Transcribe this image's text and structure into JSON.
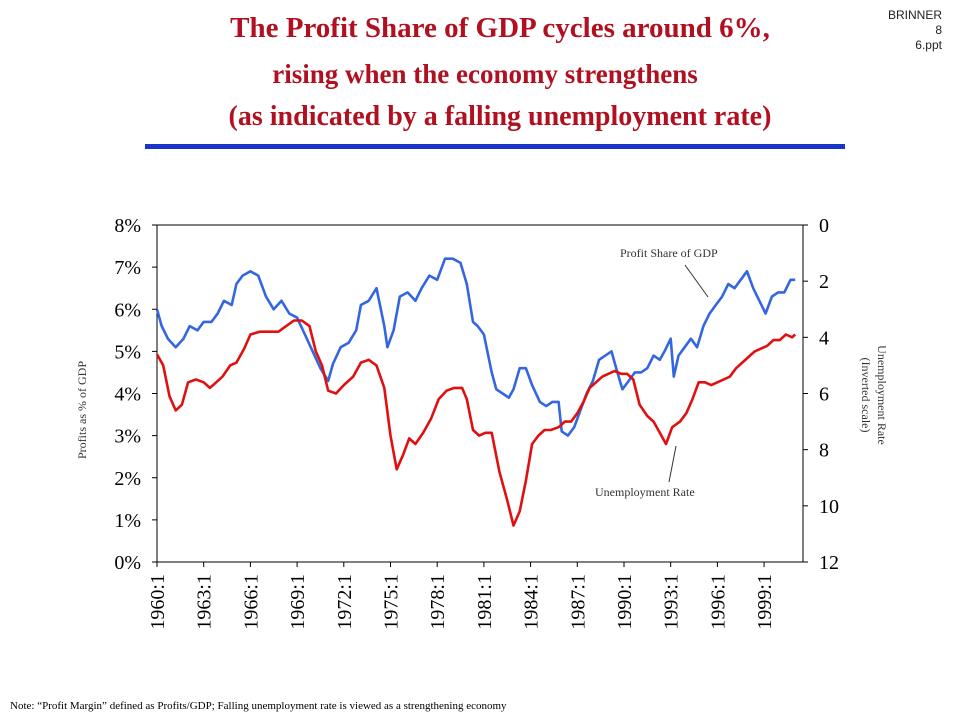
{
  "header": {
    "title_line1": "The Profit Share of GDP cycles around 6%,",
    "title_line2": "rising when the economy strengthens",
    "title_line3": "(as indicated by a falling unemployment rate)",
    "badge_line1": "BRINNER",
    "badge_line2": "8",
    "badge_line3": "6.ppt"
  },
  "note": "Note: “Profit Margin” defined as Profits/GDP; Falling unemployment rate is viewed as a strengthening economy",
  "colors": {
    "profit": "#3366e0",
    "unemployment": "#e01010",
    "title": "#b01020",
    "rule": "#1a33c8"
  },
  "chart_data": {
    "type": "line",
    "ylabel_left": "Profits as % of GDP",
    "ylabel_right_line1": "Unemployment Rate",
    "ylabel_right_line2": "(Inverted scale)",
    "y_left_ticks": [
      "0%",
      "1%",
      "2%",
      "3%",
      "4%",
      "5%",
      "6%",
      "7%",
      "8%"
    ],
    "y_right_ticks": [
      "0",
      "2",
      "4",
      "6",
      "8",
      "10",
      "12"
    ],
    "y_left_range": [
      0,
      8
    ],
    "y_right_range": [
      12,
      0
    ],
    "x_range": [
      1960.0,
      2001.5
    ],
    "x_ticks": [
      "1960:1",
      "1963:1",
      "1966:1",
      "1969:1",
      "1972:1",
      "1975:1",
      "1978:1",
      "1981:1",
      "1984:1",
      "1987:1",
      "1990:1",
      "1993:1",
      "1996:1",
      "1999:1"
    ],
    "annotations": {
      "profit": "Profit Share of GDP",
      "unemployment": "Unemployment Rate"
    },
    "series": [
      {
        "name": "Profit Share of GDP",
        "axis": "left",
        "points": [
          [
            1960.0,
            6.0
          ],
          [
            1960.3,
            5.6
          ],
          [
            1960.7,
            5.3
          ],
          [
            1961.2,
            5.1
          ],
          [
            1961.7,
            5.3
          ],
          [
            1962.1,
            5.6
          ],
          [
            1962.6,
            5.5
          ],
          [
            1963.0,
            5.7
          ],
          [
            1963.5,
            5.7
          ],
          [
            1963.9,
            5.9
          ],
          [
            1964.3,
            6.2
          ],
          [
            1964.8,
            6.1
          ],
          [
            1965.1,
            6.6
          ],
          [
            1965.5,
            6.8
          ],
          [
            1966.0,
            6.9
          ],
          [
            1966.5,
            6.8
          ],
          [
            1967.0,
            6.3
          ],
          [
            1967.5,
            6.0
          ],
          [
            1968.0,
            6.2
          ],
          [
            1968.5,
            5.9
          ],
          [
            1969.0,
            5.8
          ],
          [
            1969.5,
            5.4
          ],
          [
            1970.0,
            5.0
          ],
          [
            1970.5,
            4.6
          ],
          [
            1971.0,
            4.3
          ],
          [
            1971.3,
            4.7
          ],
          [
            1971.8,
            5.1
          ],
          [
            1972.3,
            5.2
          ],
          [
            1972.8,
            5.5
          ],
          [
            1973.1,
            6.1
          ],
          [
            1973.6,
            6.2
          ],
          [
            1974.1,
            6.5
          ],
          [
            1974.6,
            5.6
          ],
          [
            1974.8,
            5.1
          ],
          [
            1975.2,
            5.5
          ],
          [
            1975.6,
            6.3
          ],
          [
            1976.1,
            6.4
          ],
          [
            1976.6,
            6.2
          ],
          [
            1977.0,
            6.5
          ],
          [
            1977.5,
            6.8
          ],
          [
            1978.0,
            6.7
          ],
          [
            1978.5,
            7.2
          ],
          [
            1979.0,
            7.2
          ],
          [
            1979.5,
            7.1
          ],
          [
            1979.9,
            6.6
          ],
          [
            1980.3,
            5.7
          ],
          [
            1980.6,
            5.6
          ],
          [
            1981.0,
            5.4
          ],
          [
            1981.5,
            4.5
          ],
          [
            1981.8,
            4.1
          ],
          [
            1982.2,
            4.0
          ],
          [
            1982.6,
            3.9
          ],
          [
            1982.9,
            4.1
          ],
          [
            1983.3,
            4.6
          ],
          [
            1983.7,
            4.6
          ],
          [
            1984.1,
            4.2
          ],
          [
            1984.6,
            3.8
          ],
          [
            1985.0,
            3.7
          ],
          [
            1985.4,
            3.8
          ],
          [
            1985.8,
            3.8
          ],
          [
            1986.0,
            3.1
          ],
          [
            1986.4,
            3.0
          ],
          [
            1986.8,
            3.2
          ],
          [
            1987.2,
            3.6
          ],
          [
            1987.6,
            4.0
          ],
          [
            1988.0,
            4.3
          ],
          [
            1988.4,
            4.8
          ],
          [
            1988.8,
            4.9
          ],
          [
            1989.2,
            5.0
          ],
          [
            1989.5,
            4.6
          ],
          [
            1989.9,
            4.1
          ],
          [
            1990.3,
            4.3
          ],
          [
            1990.7,
            4.5
          ],
          [
            1991.1,
            4.5
          ],
          [
            1991.5,
            4.6
          ],
          [
            1991.9,
            4.9
          ],
          [
            1992.3,
            4.8
          ],
          [
            1992.6,
            5.0
          ],
          [
            1993.0,
            5.3
          ],
          [
            1993.2,
            4.4
          ],
          [
            1993.5,
            4.9
          ],
          [
            1993.9,
            5.1
          ],
          [
            1994.3,
            5.3
          ],
          [
            1994.7,
            5.1
          ],
          [
            1995.1,
            5.6
          ],
          [
            1995.5,
            5.9
          ],
          [
            1995.9,
            6.1
          ],
          [
            1996.3,
            6.3
          ],
          [
            1996.7,
            6.6
          ],
          [
            1997.1,
            6.5
          ],
          [
            1997.5,
            6.7
          ],
          [
            1997.9,
            6.9
          ],
          [
            1998.3,
            6.5
          ],
          [
            1998.7,
            6.2
          ],
          [
            1999.1,
            5.9
          ],
          [
            1999.5,
            6.3
          ],
          [
            1999.9,
            6.4
          ],
          [
            2000.3,
            6.4
          ],
          [
            2000.7,
            6.7
          ],
          [
            2001.0,
            6.7
          ]
        ]
      },
      {
        "name": "Unemployment Rate",
        "axis": "right",
        "points": [
          [
            1960.0,
            4.6
          ],
          [
            1960.4,
            5.0
          ],
          [
            1960.8,
            6.1
          ],
          [
            1961.2,
            6.6
          ],
          [
            1961.6,
            6.4
          ],
          [
            1962.0,
            5.6
          ],
          [
            1962.5,
            5.5
          ],
          [
            1963.0,
            5.6
          ],
          [
            1963.4,
            5.8
          ],
          [
            1963.8,
            5.6
          ],
          [
            1964.2,
            5.4
          ],
          [
            1964.7,
            5.0
          ],
          [
            1965.1,
            4.9
          ],
          [
            1965.6,
            4.4
          ],
          [
            1966.0,
            3.9
          ],
          [
            1966.6,
            3.8
          ],
          [
            1967.2,
            3.8
          ],
          [
            1967.8,
            3.8
          ],
          [
            1968.3,
            3.6
          ],
          [
            1968.8,
            3.4
          ],
          [
            1969.3,
            3.4
          ],
          [
            1969.8,
            3.6
          ],
          [
            1970.2,
            4.5
          ],
          [
            1970.6,
            5.0
          ],
          [
            1971.0,
            5.9
          ],
          [
            1971.5,
            6.0
          ],
          [
            1972.0,
            5.7
          ],
          [
            1972.6,
            5.4
          ],
          [
            1973.1,
            4.9
          ],
          [
            1973.6,
            4.8
          ],
          [
            1974.1,
            5.0
          ],
          [
            1974.6,
            5.8
          ],
          [
            1975.0,
            7.5
          ],
          [
            1975.4,
            8.7
          ],
          [
            1975.8,
            8.2
          ],
          [
            1976.2,
            7.6
          ],
          [
            1976.6,
            7.8
          ],
          [
            1977.1,
            7.4
          ],
          [
            1977.6,
            6.9
          ],
          [
            1978.1,
            6.2
          ],
          [
            1978.6,
            5.9
          ],
          [
            1979.1,
            5.8
          ],
          [
            1979.6,
            5.8
          ],
          [
            1979.9,
            6.2
          ],
          [
            1980.3,
            7.3
          ],
          [
            1980.7,
            7.5
          ],
          [
            1981.1,
            7.4
          ],
          [
            1981.5,
            7.4
          ],
          [
            1982.0,
            8.8
          ],
          [
            1982.5,
            9.8
          ],
          [
            1982.9,
            10.7
          ],
          [
            1983.3,
            10.2
          ],
          [
            1983.7,
            9.1
          ],
          [
            1984.1,
            7.8
          ],
          [
            1984.5,
            7.5
          ],
          [
            1984.9,
            7.3
          ],
          [
            1985.3,
            7.3
          ],
          [
            1985.8,
            7.2
          ],
          [
            1986.2,
            7.0
          ],
          [
            1986.6,
            7.0
          ],
          [
            1987.0,
            6.7
          ],
          [
            1987.4,
            6.3
          ],
          [
            1987.8,
            5.8
          ],
          [
            1988.2,
            5.6
          ],
          [
            1988.6,
            5.4
          ],
          [
            1989.0,
            5.3
          ],
          [
            1989.4,
            5.2
          ],
          [
            1989.8,
            5.3
          ],
          [
            1990.2,
            5.3
          ],
          [
            1990.6,
            5.5
          ],
          [
            1991.0,
            6.4
          ],
          [
            1991.5,
            6.8
          ],
          [
            1991.9,
            7.0
          ],
          [
            1992.3,
            7.4
          ],
          [
            1992.7,
            7.8
          ],
          [
            1993.1,
            7.2
          ],
          [
            1993.6,
            7.0
          ],
          [
            1994.0,
            6.7
          ],
          [
            1994.4,
            6.2
          ],
          [
            1994.8,
            5.6
          ],
          [
            1995.2,
            5.6
          ],
          [
            1995.6,
            5.7
          ],
          [
            1996.0,
            5.6
          ],
          [
            1996.4,
            5.5
          ],
          [
            1996.8,
            5.4
          ],
          [
            1997.2,
            5.1
          ],
          [
            1997.6,
            4.9
          ],
          [
            1998.0,
            4.7
          ],
          [
            1998.4,
            4.5
          ],
          [
            1998.8,
            4.4
          ],
          [
            1999.2,
            4.3
          ],
          [
            1999.6,
            4.1
          ],
          [
            2000.0,
            4.1
          ],
          [
            2000.4,
            3.9
          ],
          [
            2000.8,
            4.0
          ],
          [
            2001.0,
            3.9
          ]
        ]
      }
    ]
  }
}
